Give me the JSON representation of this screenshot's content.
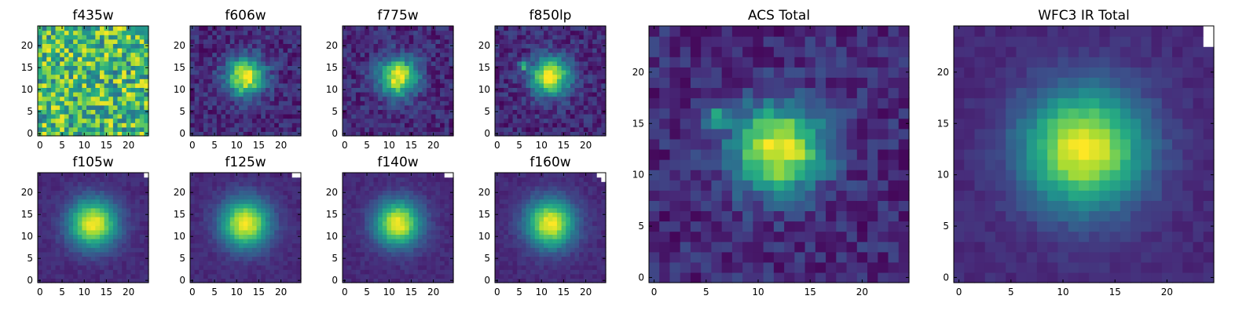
{
  "chart_data": [
    {
      "type": "heatmap",
      "title": "f435w",
      "colormap": "viridis",
      "xlim": [
        0,
        24
      ],
      "ylim": [
        0,
        24
      ],
      "xticks": [
        0,
        5,
        10,
        15,
        20
      ],
      "yticks": [
        0,
        5,
        10,
        15,
        20
      ],
      "grid": false,
      "peak": null,
      "spread": null,
      "source_offset": null,
      "secondary_peak": null,
      "noise": "high",
      "blank_pixels": []
    },
    {
      "type": "heatmap",
      "title": "f606w",
      "colormap": "viridis",
      "xlim": [
        0,
        24
      ],
      "ylim": [
        0,
        24
      ],
      "xticks": [
        0,
        5,
        10,
        15,
        20
      ],
      "yticks": [
        0,
        5,
        10,
        15,
        20
      ],
      "grid": false,
      "peak": [
        12,
        13
      ],
      "spread": 3.0,
      "source_offset": null,
      "secondary_peak": null,
      "noise": "medium",
      "blank_pixels": []
    },
    {
      "type": "heatmap",
      "title": "f775w",
      "colormap": "viridis",
      "xlim": [
        0,
        24
      ],
      "ylim": [
        0,
        24
      ],
      "xticks": [
        0,
        5,
        10,
        15,
        20
      ],
      "yticks": [
        0,
        5,
        10,
        15,
        20
      ],
      "grid": false,
      "peak": [
        12,
        13
      ],
      "spread": 3.0,
      "source_offset": null,
      "secondary_peak": null,
      "noise": "medium",
      "blank_pixels": []
    },
    {
      "type": "heatmap",
      "title": "f850lp",
      "colormap": "viridis",
      "xlim": [
        0,
        24
      ],
      "ylim": [
        0,
        24
      ],
      "xticks": [
        0,
        5,
        10,
        15,
        20
      ],
      "yticks": [
        0,
        5,
        10,
        15,
        20
      ],
      "grid": false,
      "peak": [
        12,
        13
      ],
      "spread": 3.0,
      "source_offset": null,
      "secondary_peak": [
        6,
        15.5
      ],
      "noise": "medium",
      "blank_pixels": []
    },
    {
      "type": "heatmap",
      "title": "f105w",
      "colormap": "viridis",
      "xlim": [
        0,
        24
      ],
      "ylim": [
        0,
        24
      ],
      "xticks": [
        0,
        5,
        10,
        15,
        20
      ],
      "yticks": [
        0,
        5,
        10,
        15,
        20
      ],
      "grid": false,
      "peak": [
        12,
        13
      ],
      "spread": 3.8,
      "source_offset": null,
      "secondary_peak": null,
      "noise": "low",
      "blank_pixels": [
        [
          24,
          24
        ]
      ]
    },
    {
      "type": "heatmap",
      "title": "f125w",
      "colormap": "viridis",
      "xlim": [
        0,
        24
      ],
      "ylim": [
        0,
        24
      ],
      "xticks": [
        0,
        5,
        10,
        15,
        20
      ],
      "yticks": [
        0,
        5,
        10,
        15,
        20
      ],
      "grid": false,
      "peak": [
        12,
        13
      ],
      "spread": 3.8,
      "source_offset": null,
      "secondary_peak": null,
      "noise": "low",
      "blank_pixels": [
        [
          23,
          24
        ],
        [
          24,
          24
        ]
      ]
    },
    {
      "type": "heatmap",
      "title": "f140w",
      "colormap": "viridis",
      "xlim": [
        0,
        24
      ],
      "ylim": [
        0,
        24
      ],
      "xticks": [
        0,
        5,
        10,
        15,
        20
      ],
      "yticks": [
        0,
        5,
        10,
        15,
        20
      ],
      "grid": false,
      "peak": [
        12,
        13
      ],
      "spread": 3.6,
      "source_offset": null,
      "secondary_peak": null,
      "noise": "low",
      "blank_pixels": [
        [
          23,
          24
        ],
        [
          24,
          24
        ]
      ]
    },
    {
      "type": "heatmap",
      "title": "f160w",
      "colormap": "viridis",
      "xlim": [
        0,
        24
      ],
      "ylim": [
        0,
        24
      ],
      "xticks": [
        0,
        5,
        10,
        15,
        20
      ],
      "yticks": [
        0,
        5,
        10,
        15,
        20
      ],
      "grid": false,
      "peak": [
        12,
        13
      ],
      "spread": 3.8,
      "source_offset": null,
      "secondary_peak": null,
      "noise": "low",
      "blank_pixels": [
        [
          24,
          23
        ],
        [
          23,
          24
        ],
        [
          24,
          24
        ]
      ]
    },
    {
      "type": "heatmap",
      "title": "ACS Total",
      "colormap": "viridis",
      "xlim": [
        0,
        24
      ],
      "ylim": [
        0,
        24
      ],
      "xticks": [
        0,
        5,
        10,
        15,
        20
      ],
      "yticks": [
        0,
        5,
        10,
        15,
        20
      ],
      "grid": false,
      "peak": [
        12,
        12.5
      ],
      "spread": 3.0,
      "source_offset": null,
      "secondary_peak": [
        6,
        15.5
      ],
      "noise": "medium",
      "blank_pixels": []
    },
    {
      "type": "heatmap",
      "title": "WFC3 IR Total",
      "colormap": "viridis",
      "xlim": [
        0,
        24
      ],
      "ylim": [
        0,
        24
      ],
      "xticks": [
        0,
        5,
        10,
        15,
        20
      ],
      "yticks": [
        0,
        5,
        10,
        15,
        20
      ],
      "grid": false,
      "peak": [
        12,
        12.5
      ],
      "spread": 4.0,
      "source_offset": null,
      "secondary_peak": null,
      "noise": "low",
      "blank_pixels": [
        [
          24,
          23
        ],
        [
          24,
          24
        ]
      ]
    }
  ]
}
